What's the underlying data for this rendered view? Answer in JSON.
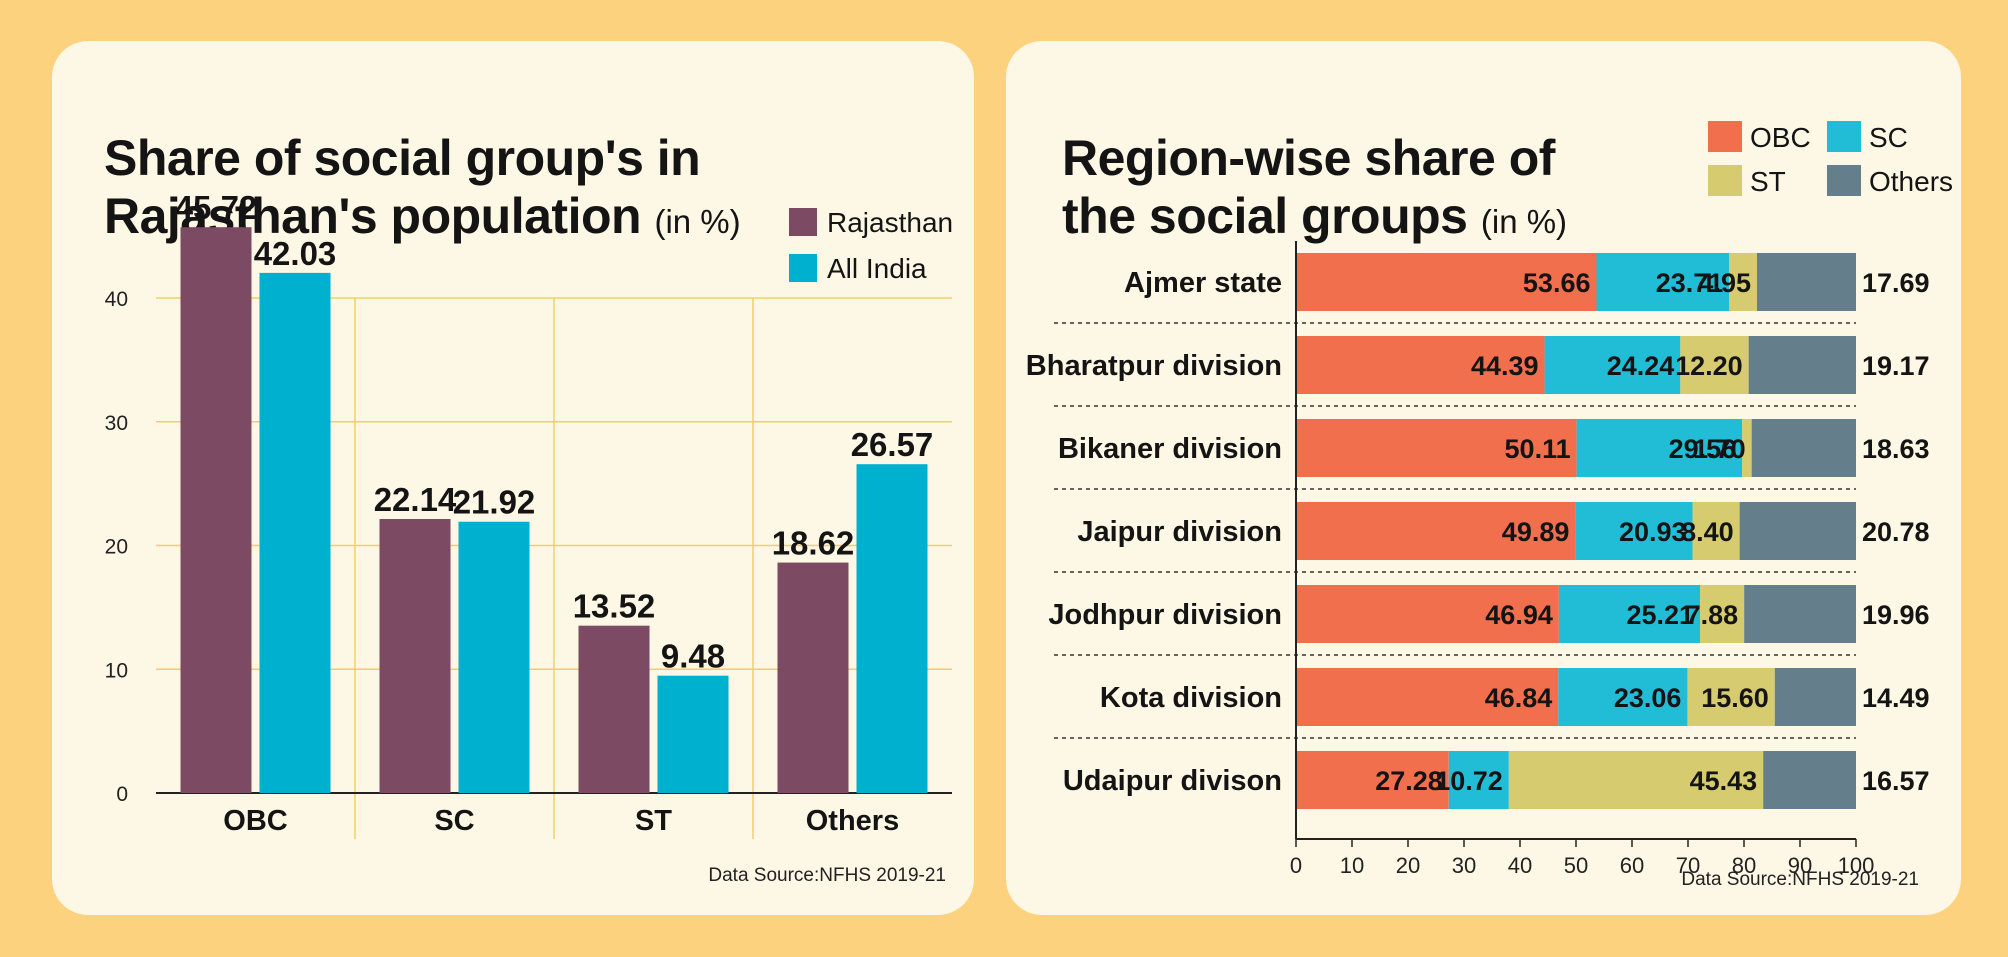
{
  "charts": {
    "left": {
      "title_line1": "Share of social group's in",
      "title_line2": "Rajasthan's population",
      "title_unit": "(in %)",
      "source": "Data Source:NFHS 2019-21"
    },
    "right": {
      "title_line1": "Region-wise share of",
      "title_line2": "the social groups",
      "title_unit": "(in %)",
      "source": "Data Source:NFHS 2019-21"
    }
  },
  "colors": {
    "rajasthan": "#7c4a62",
    "all_india": "#00b1cf",
    "obc": "#f26f4d",
    "sc": "#21bdd6",
    "st": "#d6cb6f",
    "others": "#657e8b",
    "grid": "#f3cf5f"
  },
  "chart_data": [
    {
      "type": "bar",
      "title": "Share of social group's in Rajasthan's population (in %)",
      "categories": [
        "OBC",
        "SC",
        "ST",
        "Others"
      ],
      "series": [
        {
          "name": "Rajasthan",
          "values": [
            45.72,
            22.14,
            13.52,
            18.62
          ]
        },
        {
          "name": "All India",
          "values": [
            42.03,
            21.92,
            9.48,
            26.57
          ]
        }
      ],
      "ylim": [
        0,
        48
      ],
      "yticks": [
        0,
        10,
        20,
        30,
        40
      ],
      "legend": "top-right",
      "grid": true
    },
    {
      "type": "bar",
      "orientation": "horizontal-stacked",
      "title": "Region-wise share of the social groups (in %)",
      "categories": [
        "Ajmer state",
        "Bharatpur division",
        "Bikaner division",
        "Jaipur division",
        "Jodhpur division",
        "Kota division",
        "Udaipur divison"
      ],
      "series": [
        {
          "name": "OBC",
          "values": [
            53.66,
            44.39,
            50.11,
            49.89,
            46.94,
            46.84,
            27.28
          ]
        },
        {
          "name": "SC",
          "values": [
            23.71,
            24.24,
            29.56,
            20.93,
            25.21,
            23.06,
            10.72
          ]
        },
        {
          "name": "ST",
          "values": [
            4.95,
            12.2,
            1.7,
            8.4,
            7.88,
            15.6,
            45.43
          ]
        },
        {
          "name": "Others",
          "values": [
            17.69,
            19.17,
            18.63,
            20.78,
            19.96,
            14.49,
            16.57
          ]
        }
      ],
      "xlim": [
        0,
        100
      ],
      "xticks": [
        0,
        10,
        20,
        30,
        40,
        50,
        60,
        70,
        80,
        90,
        100
      ],
      "legend": "top-right"
    }
  ]
}
